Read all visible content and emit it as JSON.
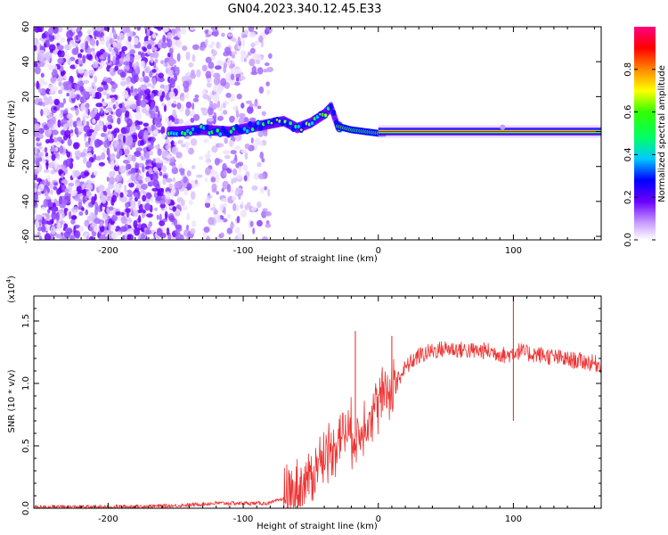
{
  "title": "GN04.2023.340.12.45.E33",
  "chart_data": [
    {
      "type": "heatmap",
      "xlabel": "Height of straight line (km)",
      "ylabel": "Frequency (Hz)",
      "xlim": [
        -255,
        165
      ],
      "ylim": [
        -62,
        60
      ],
      "xticks": [
        -200,
        -100,
        0,
        100
      ],
      "yticks": [
        -60,
        -40,
        -20,
        0,
        20,
        40,
        60
      ],
      "colorbar": {
        "label": "Normalized spectral amplitude",
        "range": [
          0,
          1
        ],
        "ticks": [
          0.0,
          0.2,
          0.4,
          0.6,
          0.8
        ],
        "tick_labels": [
          "0.0",
          "0.2",
          "0.4",
          "0.6",
          "0.8"
        ]
      },
      "ridge": {
        "description_points_x": [
          -150,
          -130,
          -110,
          -90,
          -70,
          -60,
          -50,
          -40,
          -35,
          -30,
          -20,
          -10,
          0,
          50,
          100,
          165
        ],
        "description_points_y": [
          0,
          1,
          0,
          3,
          6,
          2,
          5,
          10,
          14,
          3,
          1,
          0,
          -1,
          0,
          0,
          0
        ]
      }
    },
    {
      "type": "line",
      "xlabel": "Height of straight line (km)",
      "ylabel": "SNR (10 * v/v)",
      "scale_label": "(x10",
      "scale_exp": "4",
      "scale_close": ")",
      "xlim": [
        -255,
        165
      ],
      "ylim": [
        0,
        1.7
      ],
      "xticks": [
        -200,
        -100,
        0,
        100
      ],
      "yticks": [
        0.0,
        0.5,
        1.0,
        1.5
      ],
      "ytick_labels": [
        "0.0",
        "0.5",
        "1.0",
        "1.5"
      ],
      "series": [
        {
          "color": "#ee3333",
          "x": [
            -255,
            -200,
            -150,
            -120,
            -100,
            -80,
            -70,
            -60,
            -50,
            -45,
            -40,
            -35,
            -30,
            -25,
            -20,
            -15,
            -10,
            -5,
            0,
            5,
            10,
            15,
            20,
            25,
            30,
            40,
            50,
            60,
            70,
            80,
            90,
            95,
            100,
            105,
            110,
            120,
            130,
            140,
            150,
            165
          ],
          "y": [
            0.01,
            0.01,
            0.02,
            0.04,
            0.04,
            0.04,
            0.08,
            0.15,
            0.25,
            0.35,
            0.42,
            0.48,
            0.55,
            0.62,
            0.6,
            0.55,
            0.7,
            0.78,
            0.85,
            0.9,
            0.98,
            1.05,
            1.12,
            1.18,
            1.22,
            1.26,
            1.28,
            1.27,
            1.26,
            1.26,
            1.24,
            1.22,
            1.25,
            1.26,
            1.24,
            1.23,
            1.21,
            1.19,
            1.18,
            1.15
          ]
        }
      ],
      "spikes": [
        {
          "x": -17,
          "y": 1.42
        },
        {
          "x": 10,
          "y": 1.38
        },
        {
          "x": 100,
          "y": 1.7
        },
        {
          "x": 100,
          "y": 0.7
        }
      ]
    }
  ]
}
